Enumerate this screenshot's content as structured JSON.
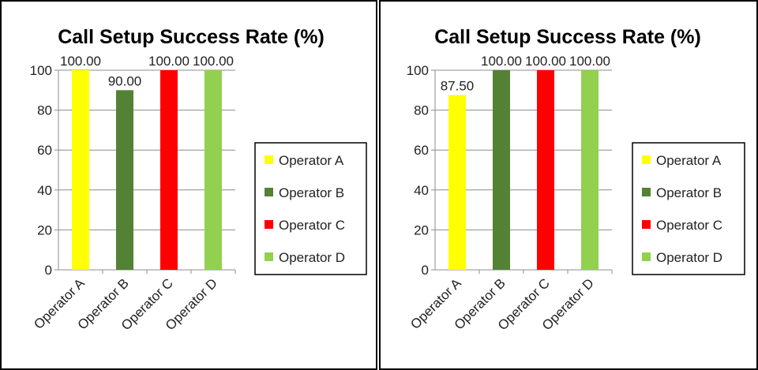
{
  "chart_data": [
    {
      "type": "bar",
      "title": "Call Setup Success Rate (%)",
      "xlabel": "",
      "ylabel": "",
      "ylim": [
        0,
        100
      ],
      "yticks": [
        0,
        20,
        40,
        60,
        80,
        100
      ],
      "grid": true,
      "legend_position": "right",
      "categories": [
        "Operator A",
        "Operator B",
        "Operator C",
        "Operator D"
      ],
      "values": [
        100,
        90,
        100,
        100
      ],
      "data_labels": [
        "100.00",
        "90.00",
        "100.00",
        "100.00"
      ],
      "colors": [
        "#ffff00",
        "#548235",
        "#ff0000",
        "#92d050"
      ],
      "legend": [
        "Operator A",
        "Operator B",
        "Operator C",
        "Operator D"
      ]
    },
    {
      "type": "bar",
      "title": "Call Setup Success Rate (%)",
      "xlabel": "",
      "ylabel": "",
      "ylim": [
        0,
        100
      ],
      "yticks": [
        0,
        20,
        40,
        60,
        80,
        100
      ],
      "grid": true,
      "legend_position": "right",
      "categories": [
        "Operator A",
        "Operator B",
        "Operator C",
        "Operator D"
      ],
      "values": [
        87.5,
        100,
        100,
        100
      ],
      "data_labels": [
        "87.50",
        "100.00",
        "100.00",
        "100.00"
      ],
      "colors": [
        "#ffff00",
        "#548235",
        "#ff0000",
        "#92d050"
      ],
      "legend": [
        "Operator A",
        "Operator B",
        "Operator C",
        "Operator D"
      ]
    }
  ]
}
